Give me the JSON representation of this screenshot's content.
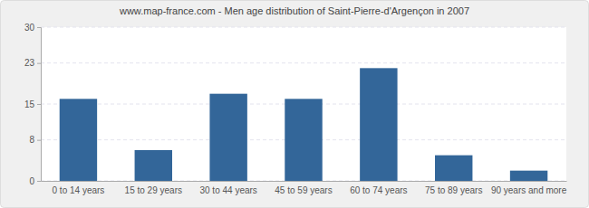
{
  "chart_data": {
    "type": "bar",
    "title": "www.map-france.com - Men age distribution of Saint-Pierre-d'Argençon in 2007",
    "categories": [
      "0 to 14 years",
      "15 to 29 years",
      "30 to 44 years",
      "45 to 59 years",
      "60 to 74 years",
      "75 to 89 years",
      "90 years and more"
    ],
    "values": [
      16,
      6,
      17,
      16,
      22,
      5,
      2
    ],
    "color": "#336699",
    "ylim": [
      0,
      30
    ],
    "yticks": [
      0,
      8,
      15,
      23,
      30
    ],
    "grid": true
  }
}
